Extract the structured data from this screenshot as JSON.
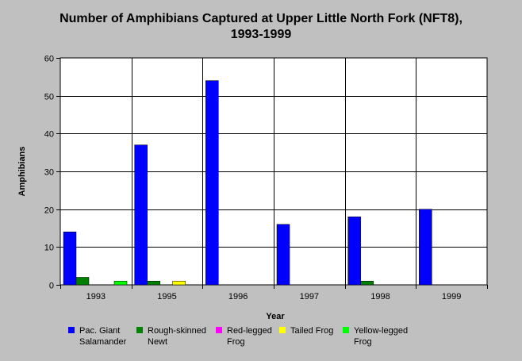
{
  "chart_data": {
    "type": "bar",
    "title": "Number of Amphibians Captured at Upper Little North Fork (NFT8),",
    "subtitle": "1993-1999",
    "xlabel": "Year",
    "ylabel": "Amphibians",
    "ylim": [
      0,
      60
    ],
    "yticks": [
      "0",
      "10",
      "20",
      "30",
      "40",
      "50",
      "60"
    ],
    "grid": "horizontal and vertical",
    "legend_position": "bottom",
    "categories": [
      "1993",
      "1995",
      "1996",
      "1997",
      "1998",
      "1999"
    ],
    "series": [
      {
        "name": "Pac. Giant Salamander",
        "color": "#0000ff",
        "values": [
          14,
          37,
          54,
          16,
          18,
          20
        ]
      },
      {
        "name": "Rough-skinned Newt",
        "color": "#008000",
        "values": [
          2,
          1,
          0,
          0,
          1,
          0
        ]
      },
      {
        "name": "Red-legged Frog",
        "color": "#ff00ff",
        "values": [
          0,
          0,
          0,
          0,
          0,
          0
        ]
      },
      {
        "name": "Tailed Frog",
        "color": "#ffff00",
        "values": [
          0,
          1,
          0,
          0,
          0,
          0
        ]
      },
      {
        "name": "Yellow-legged Frog",
        "color": "#00ff00",
        "values": [
          1,
          0,
          0,
          0,
          0,
          0
        ]
      }
    ]
  },
  "legend": {
    "items": [
      {
        "line1": "Pac. Giant",
        "line2": "Salamander",
        "color": "#0000ff"
      },
      {
        "line1": "Rough-skinned",
        "line2": "Newt",
        "color": "#008000"
      },
      {
        "line1": "Red-legged",
        "line2": "Frog",
        "color": "#ff00ff"
      },
      {
        "line1": "Tailed Frog",
        "line2": "",
        "color": "#ffff00"
      },
      {
        "line1": "Yellow-legged",
        "line2": "Frog",
        "color": "#00ff00"
      }
    ]
  }
}
